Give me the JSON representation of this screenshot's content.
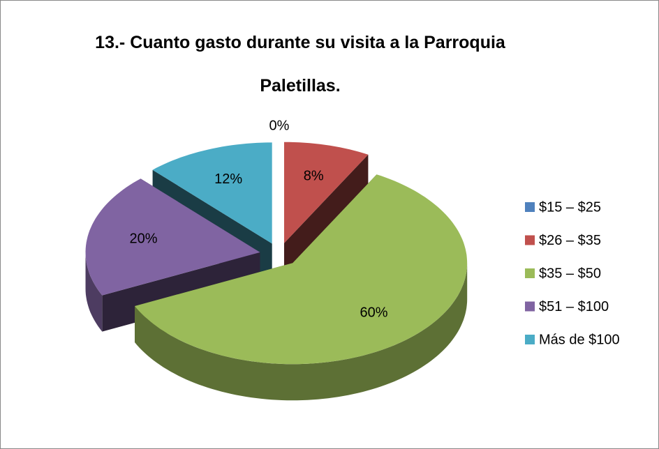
{
  "chart_data": {
    "type": "pie",
    "title": "13.- Cuanto gasto durante su visita a la Parroquia Paletillas.",
    "categories": [
      "$15 – $25",
      "$26 – $35",
      "$35 – $50",
      "$51 – $100",
      "Más de $100"
    ],
    "values": [
      0,
      8,
      60,
      20,
      12
    ],
    "value_labels": [
      "0%",
      "8%",
      "60%",
      "20%",
      "12%"
    ],
    "colors": [
      "#4f81bd",
      "#c0504d",
      "#9bbb59",
      "#8064a2",
      "#4bacc6"
    ],
    "legend": "right"
  }
}
